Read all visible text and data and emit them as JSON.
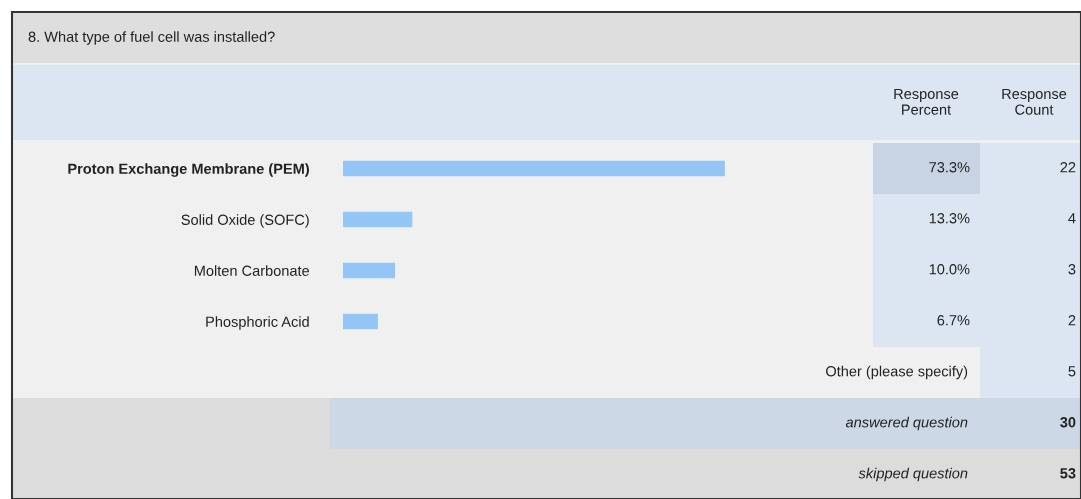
{
  "chart_data": {
    "type": "bar",
    "orientation": "horizontal",
    "title": "8. What type of fuel cell was installed?",
    "categories": [
      "Proton Exchange Membrane (PEM)",
      "Solid Oxide (SOFC)",
      "Molten Carbonate",
      "Phosphoric Acid"
    ],
    "values": [
      73.3,
      13.3,
      10.0,
      6.7
    ],
    "value_labels": [
      "73.3%",
      "13.3%",
      "10.0%",
      "6.7%"
    ],
    "color": "#93c6f4",
    "tick_labels": "y",
    "grid": false,
    "legend": false,
    "annotations": [
      "Response Percent",
      "Response Count",
      "22",
      "4",
      "3",
      "2",
      "Other (please specify)",
      "5",
      "answered question",
      "30",
      "skipped question",
      "53"
    ]
  }
}
